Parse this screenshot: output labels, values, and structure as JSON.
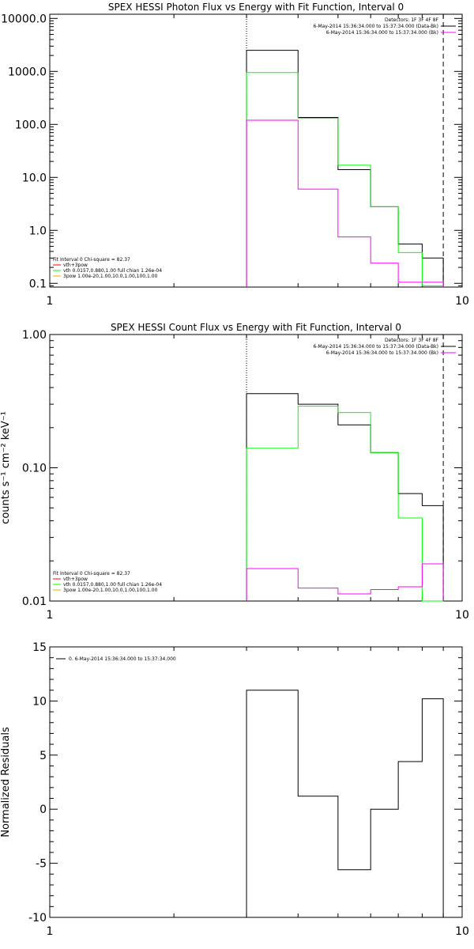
{
  "chart_data": [
    {
      "type": "line",
      "title": "SPEX HESSI Photon Flux vs Energy with Fit Function, Interval 0",
      "ylabel": "",
      "xscale": "log",
      "yscale": "log",
      "xlim": [
        1,
        10
      ],
      "ylim": [
        0.085,
        12000
      ],
      "x_ticks": [
        {
          "v": 1,
          "label": "1"
        },
        {
          "v": 10,
          "label": "10"
        }
      ],
      "y_ticks": [
        {
          "v": 0.1,
          "label": "0.1"
        },
        {
          "v": 1,
          "label": "1.0"
        },
        {
          "v": 10,
          "label": "10.0"
        },
        {
          "v": 100,
          "label": "100.0"
        },
        {
          "v": 1000,
          "label": "1000.0"
        },
        {
          "v": 10000,
          "label": "10000.0"
        }
      ],
      "vlines": [
        {
          "x": 3,
          "style": "dotted"
        },
        {
          "x": 9,
          "style": "dashed"
        }
      ],
      "legend": {
        "placement": "top-right",
        "header": "Detectors: 1F 3F 4F 8F",
        "entries": [
          {
            "text": "6-May-2014 15:36:34.000 to 15:37:34.000 (Data-Bk)",
            "color": "#000000"
          },
          {
            "text": "6-May-2014 15:36:34.000 to 15:37:34.000 (Bk)",
            "color": "#ff00ff"
          }
        ]
      },
      "fit_legend": {
        "placement": "bottom-left",
        "header": "Fit Interval 0   Chi-square = 82.37",
        "entries": [
          {
            "text": "vth+3pow",
            "color": "#ff0000"
          },
          {
            "text": "vth 0.0157,0.880,1.00   full chian 1.26e-04",
            "color": "#00ff00"
          },
          {
            "text": "3pow 1.00e-20,1.00,10.0,1.00,100,1.00",
            "color": "#ffa500"
          }
        ]
      },
      "bin_edges": [
        3,
        4,
        5,
        6,
        7,
        8,
        9
      ],
      "series": [
        {
          "color": "#000000",
          "values": [
            2500,
            135,
            14,
            2.8,
            0.55,
            0.3
          ]
        },
        {
          "color": "#00ff00",
          "values": [
            950,
            130,
            17,
            2.8,
            0.38,
            0.09
          ]
        },
        {
          "color": "#ff00ff",
          "values": [
            120,
            6,
            0.75,
            0.24,
            0.105,
            0.105
          ]
        }
      ]
    },
    {
      "type": "line",
      "title": "SPEX HESSI Count Flux vs Energy with Fit Function, Interval 0",
      "ylabel": "counts s⁻¹ cm⁻² keV⁻¹",
      "xscale": "log",
      "yscale": "log",
      "xlim": [
        1,
        10
      ],
      "ylim": [
        0.01,
        1.0
      ],
      "x_ticks": [
        {
          "v": 1,
          "label": "1"
        },
        {
          "v": 10,
          "label": "10"
        }
      ],
      "y_ticks": [
        {
          "v": 0.01,
          "label": "0.01"
        },
        {
          "v": 0.1,
          "label": "0.10"
        },
        {
          "v": 1,
          "label": "1.00"
        }
      ],
      "vlines": [
        {
          "x": 3,
          "style": "dotted"
        },
        {
          "x": 9,
          "style": "dashed"
        }
      ],
      "legend": {
        "placement": "top-right",
        "header": "Detectors: 1F 3F 4F 8F",
        "entries": [
          {
            "text": "6-May-2014 15:36:34.000 to 15:37:34.000 (Data-Bk)",
            "color": "#000000"
          },
          {
            "text": "6-May-2014 15:36:34.000 to 15:37:34.000 (Bk)",
            "color": "#ff00ff"
          }
        ]
      },
      "fit_legend": {
        "placement": "bottom-left",
        "header": "Fit Interval 0   Chi-square = 82.37",
        "entries": [
          {
            "text": "vth+3pow",
            "color": "#ff0000"
          },
          {
            "text": "vth 0.0157,0.880,1.00   full chian 1.26e-04",
            "color": "#00ff00"
          },
          {
            "text": "3pow 1.00e-20,1.00,10.0,1.00,100,1.00",
            "color": "#ffa500"
          }
        ]
      },
      "bin_edges": [
        3,
        4,
        5,
        6,
        7,
        8,
        9
      ],
      "series": [
        {
          "color": "#000000",
          "values": [
            0.36,
            0.3,
            0.21,
            0.13,
            0.064,
            0.052
          ]
        },
        {
          "color": "#00ff00",
          "values": [
            0.14,
            0.29,
            0.26,
            0.13,
            0.042,
            0.009
          ]
        },
        {
          "color": "#ff00ff",
          "values": [
            0.0175,
            0.0125,
            0.0113,
            0.0122,
            0.0128,
            0.019
          ]
        }
      ]
    },
    {
      "type": "line",
      "title": "",
      "ylabel": "Normalized Residuals",
      "xscale": "log",
      "yscale": "linear",
      "xlim": [
        1,
        10
      ],
      "ylim": [
        -10,
        15
      ],
      "x_ticks": [
        {
          "v": 1,
          "label": "1"
        },
        {
          "v": 10,
          "label": "10"
        }
      ],
      "y_ticks": [
        {
          "v": -10,
          "label": "-10"
        },
        {
          "v": -5,
          "label": "-5"
        },
        {
          "v": 0,
          "label": "0"
        },
        {
          "v": 5,
          "label": "5"
        },
        {
          "v": 10,
          "label": "10"
        },
        {
          "v": 15,
          "label": "15"
        }
      ],
      "vlines": [],
      "legend": {
        "placement": "top-left",
        "header": "",
        "entries": [
          {
            "text": "0.  6-May-2014 15:36:34.000 to 15:37:34.000",
            "color": "#000000"
          }
        ]
      },
      "bin_edges": [
        3,
        4,
        5,
        6,
        7,
        8,
        9
      ],
      "series": [
        {
          "color": "#000000",
          "values": [
            11,
            1.2,
            -5.6,
            0,
            4.4,
            10.2
          ]
        }
      ]
    }
  ]
}
